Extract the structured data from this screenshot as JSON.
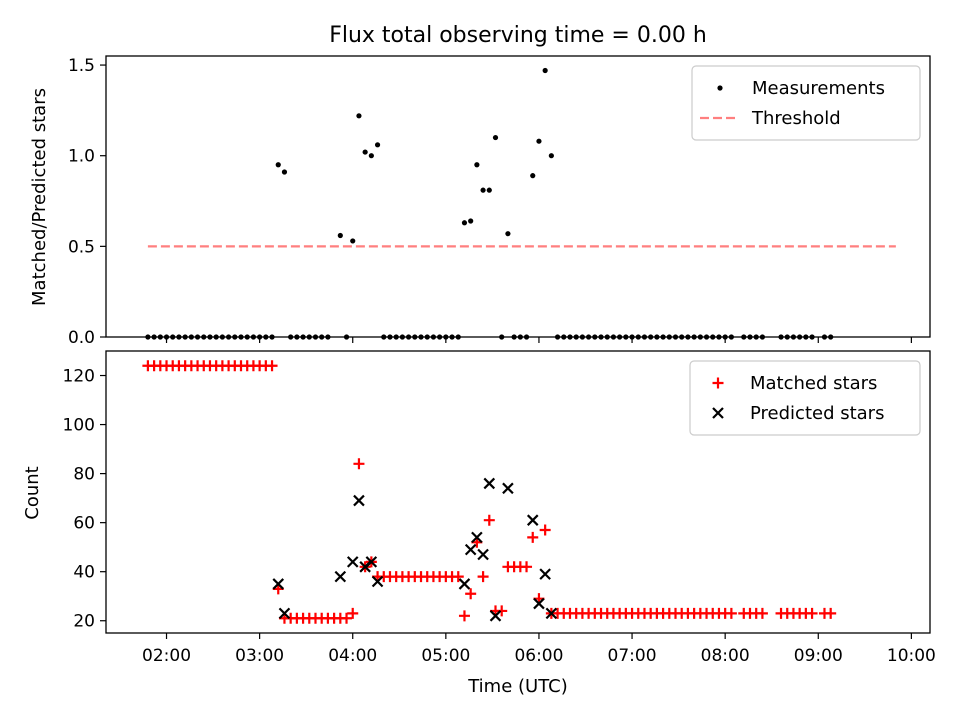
{
  "chart_data": [
    {
      "type": "scatter",
      "title": "Flux total observing time = 0.00 h",
      "ylabel": "Matched/Predicted stars",
      "xlabel": "",
      "ylim": [
        0,
        1.55
      ],
      "xlim": [
        "01:21",
        "10:12"
      ],
      "yticks": [
        0.0,
        0.5,
        1.0,
        1.5
      ],
      "ytick_labels": [
        "0.0",
        "0.5",
        "1.0",
        "1.5"
      ],
      "legend_position": "top-right",
      "grid": false,
      "threshold": {
        "name": "Threshold",
        "y": 0.5,
        "x_from": "01:48",
        "x_to": "09:50",
        "color": "#ff7f7f"
      },
      "series": [
        {
          "name": "Measurements",
          "marker": "dot",
          "color": "#000000",
          "points": [
            [
              "01:48",
              0
            ],
            [
              "01:52",
              0
            ],
            [
              "01:56",
              0
            ],
            [
              "02:00",
              0
            ],
            [
              "02:04",
              0
            ],
            [
              "02:08",
              0
            ],
            [
              "02:12",
              0
            ],
            [
              "02:16",
              0
            ],
            [
              "02:20",
              0
            ],
            [
              "02:24",
              0
            ],
            [
              "02:28",
              0
            ],
            [
              "02:32",
              0
            ],
            [
              "02:36",
              0
            ],
            [
              "02:40",
              0
            ],
            [
              "02:44",
              0
            ],
            [
              "02:48",
              0
            ],
            [
              "02:52",
              0
            ],
            [
              "02:56",
              0
            ],
            [
              "03:00",
              0
            ],
            [
              "03:04",
              0
            ],
            [
              "03:08",
              0
            ],
            [
              "03:12",
              0.95
            ],
            [
              "03:16",
              0.91
            ],
            [
              "03:20",
              0
            ],
            [
              "03:24",
              0
            ],
            [
              "03:28",
              0
            ],
            [
              "03:32",
              0
            ],
            [
              "03:36",
              0
            ],
            [
              "03:40",
              0
            ],
            [
              "03:44",
              0
            ],
            [
              "03:52",
              0.56
            ],
            [
              "03:56",
              0
            ],
            [
              "04:00",
              0.53
            ],
            [
              "04:04",
              1.22
            ],
            [
              "04:08",
              1.02
            ],
            [
              "04:12",
              1.0
            ],
            [
              "04:16",
              1.06
            ],
            [
              "04:20",
              0
            ],
            [
              "04:24",
              0
            ],
            [
              "04:28",
              0
            ],
            [
              "04:32",
              0
            ],
            [
              "04:36",
              0
            ],
            [
              "04:40",
              0
            ],
            [
              "04:44",
              0
            ],
            [
              "04:48",
              0
            ],
            [
              "04:52",
              0
            ],
            [
              "04:56",
              0
            ],
            [
              "05:00",
              0
            ],
            [
              "05:04",
              0
            ],
            [
              "05:08",
              0
            ],
            [
              "05:12",
              0.63
            ],
            [
              "05:16",
              0.64
            ],
            [
              "05:20",
              0.95
            ],
            [
              "05:24",
              0.81
            ],
            [
              "05:28",
              0.81
            ],
            [
              "05:32",
              1.1
            ],
            [
              "05:36",
              0
            ],
            [
              "05:40",
              0.57
            ],
            [
              "05:44",
              0
            ],
            [
              "05:48",
              0
            ],
            [
              "05:52",
              0
            ],
            [
              "05:56",
              0.89
            ],
            [
              "06:00",
              1.08
            ],
            [
              "06:04",
              1.47
            ],
            [
              "06:08",
              1.0
            ],
            [
              "06:12",
              0
            ],
            [
              "06:16",
              0
            ],
            [
              "06:20",
              0
            ],
            [
              "06:24",
              0
            ],
            [
              "06:28",
              0
            ],
            [
              "06:32",
              0
            ],
            [
              "06:36",
              0
            ],
            [
              "06:40",
              0
            ],
            [
              "06:44",
              0
            ],
            [
              "06:48",
              0
            ],
            [
              "06:52",
              0
            ],
            [
              "06:56",
              0
            ],
            [
              "07:00",
              0
            ],
            [
              "07:04",
              0
            ],
            [
              "07:08",
              0
            ],
            [
              "07:12",
              0
            ],
            [
              "07:16",
              0
            ],
            [
              "07:20",
              0
            ],
            [
              "07:24",
              0
            ],
            [
              "07:28",
              0
            ],
            [
              "07:32",
              0
            ],
            [
              "07:36",
              0
            ],
            [
              "07:40",
              0
            ],
            [
              "07:44",
              0
            ],
            [
              "07:48",
              0
            ],
            [
              "07:52",
              0
            ],
            [
              "07:56",
              0
            ],
            [
              "08:00",
              0
            ],
            [
              "08:04",
              0
            ],
            [
              "08:12",
              0
            ],
            [
              "08:16",
              0
            ],
            [
              "08:20",
              0
            ],
            [
              "08:24",
              0
            ],
            [
              "08:36",
              0
            ],
            [
              "08:40",
              0
            ],
            [
              "08:44",
              0
            ],
            [
              "08:48",
              0
            ],
            [
              "08:52",
              0
            ],
            [
              "08:56",
              0
            ],
            [
              "09:04",
              0
            ],
            [
              "09:08",
              0
            ]
          ]
        }
      ]
    },
    {
      "type": "scatter",
      "title": "",
      "ylabel": "Count",
      "xlabel": "Time (UTC)",
      "ylim": [
        15,
        130
      ],
      "xlim": [
        "01:21",
        "10:12"
      ],
      "yticks": [
        20,
        40,
        60,
        80,
        100,
        120
      ],
      "ytick_labels": [
        "20",
        "40",
        "60",
        "80",
        "100",
        "120"
      ],
      "xticks": [
        "02:00",
        "03:00",
        "04:00",
        "05:00",
        "06:00",
        "07:00",
        "08:00",
        "09:00",
        "10:00"
      ],
      "xtick_labels": [
        "02:00",
        "03:00",
        "04:00",
        "05:00",
        "06:00",
        "07:00",
        "08:00",
        "09:00",
        "10:00"
      ],
      "legend_position": "top-right",
      "grid": false,
      "series": [
        {
          "name": "Matched stars",
          "marker": "plus",
          "color": "#ff0000",
          "points": [
            [
              "01:48",
              124
            ],
            [
              "01:52",
              124
            ],
            [
              "01:56",
              124
            ],
            [
              "02:00",
              124
            ],
            [
              "02:04",
              124
            ],
            [
              "02:08",
              124
            ],
            [
              "02:12",
              124
            ],
            [
              "02:16",
              124
            ],
            [
              "02:20",
              124
            ],
            [
              "02:24",
              124
            ],
            [
              "02:28",
              124
            ],
            [
              "02:32",
              124
            ],
            [
              "02:36",
              124
            ],
            [
              "02:40",
              124
            ],
            [
              "02:44",
              124
            ],
            [
              "02:48",
              124
            ],
            [
              "02:52",
              124
            ],
            [
              "02:56",
              124
            ],
            [
              "03:00",
              124
            ],
            [
              "03:04",
              124
            ],
            [
              "03:08",
              124
            ],
            [
              "03:12",
              33
            ],
            [
              "03:16",
              21
            ],
            [
              "03:20",
              21
            ],
            [
              "03:24",
              21
            ],
            [
              "03:28",
              21
            ],
            [
              "03:32",
              21
            ],
            [
              "03:36",
              21
            ],
            [
              "03:40",
              21
            ],
            [
              "03:44",
              21
            ],
            [
              "03:48",
              21
            ],
            [
              "03:52",
              21
            ],
            [
              "03:56",
              21
            ],
            [
              "04:00",
              23
            ],
            [
              "04:04",
              84
            ],
            [
              "04:08",
              42
            ],
            [
              "04:12",
              44
            ],
            [
              "04:16",
              38
            ],
            [
              "04:20",
              38
            ],
            [
              "04:24",
              38
            ],
            [
              "04:28",
              38
            ],
            [
              "04:32",
              38
            ],
            [
              "04:36",
              38
            ],
            [
              "04:40",
              38
            ],
            [
              "04:44",
              38
            ],
            [
              "04:48",
              38
            ],
            [
              "04:52",
              38
            ],
            [
              "04:56",
              38
            ],
            [
              "05:00",
              38
            ],
            [
              "05:04",
              38
            ],
            [
              "05:08",
              38
            ],
            [
              "05:12",
              22
            ],
            [
              "05:16",
              31
            ],
            [
              "05:20",
              52
            ],
            [
              "05:24",
              38
            ],
            [
              "05:28",
              61
            ],
            [
              "05:32",
              24
            ],
            [
              "05:36",
              24
            ],
            [
              "05:40",
              42
            ],
            [
              "05:44",
              42
            ],
            [
              "05:48",
              42
            ],
            [
              "05:52",
              42
            ],
            [
              "05:56",
              54
            ],
            [
              "06:00",
              29
            ],
            [
              "06:04",
              57
            ],
            [
              "06:08",
              23
            ],
            [
              "06:12",
              23
            ],
            [
              "06:16",
              23
            ],
            [
              "06:20",
              23
            ],
            [
              "06:24",
              23
            ],
            [
              "06:28",
              23
            ],
            [
              "06:32",
              23
            ],
            [
              "06:36",
              23
            ],
            [
              "06:40",
              23
            ],
            [
              "06:44",
              23
            ],
            [
              "06:48",
              23
            ],
            [
              "06:52",
              23
            ],
            [
              "06:56",
              23
            ],
            [
              "07:00",
              23
            ],
            [
              "07:04",
              23
            ],
            [
              "07:08",
              23
            ],
            [
              "07:12",
              23
            ],
            [
              "07:16",
              23
            ],
            [
              "07:20",
              23
            ],
            [
              "07:24",
              23
            ],
            [
              "07:28",
              23
            ],
            [
              "07:32",
              23
            ],
            [
              "07:36",
              23
            ],
            [
              "07:40",
              23
            ],
            [
              "07:44",
              23
            ],
            [
              "07:48",
              23
            ],
            [
              "07:52",
              23
            ],
            [
              "07:56",
              23
            ],
            [
              "08:00",
              23
            ],
            [
              "08:04",
              23
            ],
            [
              "08:12",
              23
            ],
            [
              "08:16",
              23
            ],
            [
              "08:20",
              23
            ],
            [
              "08:24",
              23
            ],
            [
              "08:36",
              23
            ],
            [
              "08:40",
              23
            ],
            [
              "08:44",
              23
            ],
            [
              "08:48",
              23
            ],
            [
              "08:52",
              23
            ],
            [
              "08:56",
              23
            ],
            [
              "09:04",
              23
            ],
            [
              "09:08",
              23
            ]
          ]
        },
        {
          "name": "Predicted stars",
          "marker": "x",
          "color": "#000000",
          "points": [
            [
              "03:12",
              35
            ],
            [
              "03:16",
              23
            ],
            [
              "03:52",
              38
            ],
            [
              "04:00",
              44
            ],
            [
              "04:04",
              69
            ],
            [
              "04:08",
              42
            ],
            [
              "04:12",
              44
            ],
            [
              "04:16",
              36
            ],
            [
              "05:12",
              35
            ],
            [
              "05:16",
              49
            ],
            [
              "05:20",
              54
            ],
            [
              "05:24",
              47
            ],
            [
              "05:28",
              76
            ],
            [
              "05:32",
              22
            ],
            [
              "05:40",
              74
            ],
            [
              "05:56",
              61
            ],
            [
              "06:00",
              27
            ],
            [
              "06:04",
              39
            ],
            [
              "06:08",
              23
            ]
          ]
        }
      ]
    }
  ]
}
